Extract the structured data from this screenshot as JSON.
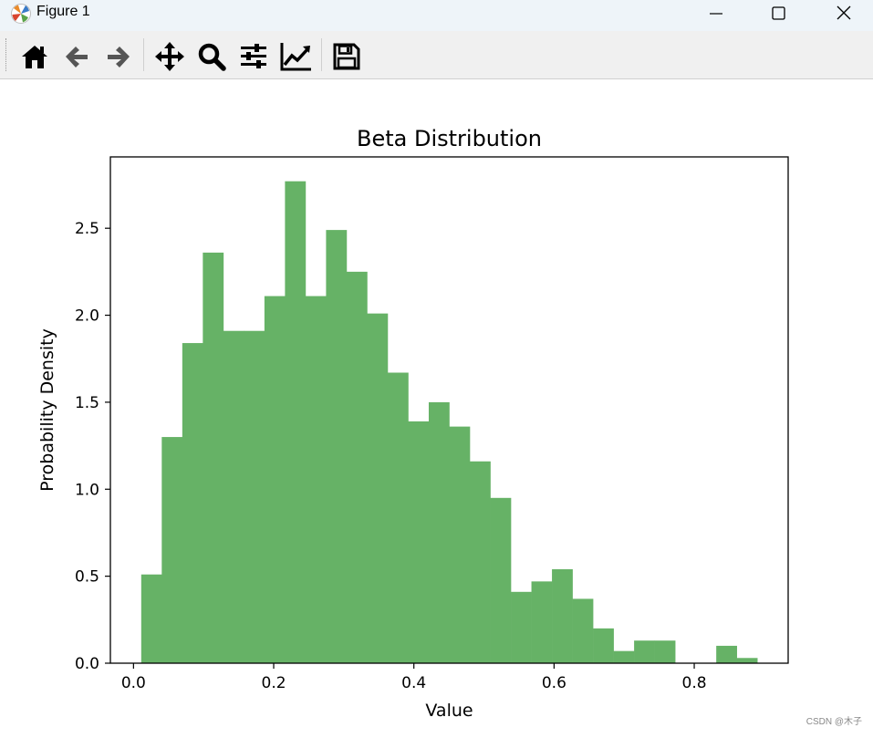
{
  "window": {
    "title": "Figure 1",
    "controls": {
      "minimize": "minimize",
      "maximize": "maximize",
      "close": "close"
    }
  },
  "toolbar": {
    "buttons": [
      {
        "name": "home-button",
        "icon": "home-icon"
      },
      {
        "name": "back-button",
        "icon": "arrow-left-icon"
      },
      {
        "name": "forward-button",
        "icon": "arrow-right-icon"
      },
      {
        "name": "pan-button",
        "icon": "move-icon"
      },
      {
        "name": "zoom-button",
        "icon": "magnifier-icon"
      },
      {
        "name": "configure-subplots-button",
        "icon": "sliders-icon"
      },
      {
        "name": "edit-axis-button",
        "icon": "line-chart-icon"
      },
      {
        "name": "save-button",
        "icon": "floppy-disk-icon"
      }
    ]
  },
  "chart_data": {
    "type": "bar",
    "title": "Beta Distribution",
    "xlabel": "Value",
    "ylabel": "Probability Density",
    "bin_edges": [
      0.011,
      0.0403,
      0.0696,
      0.0989,
      0.1282,
      0.1575,
      0.1868,
      0.2161,
      0.2454,
      0.2747,
      0.304,
      0.3333,
      0.3626,
      0.3919,
      0.4212,
      0.4505,
      0.4798,
      0.5091,
      0.5384,
      0.5677,
      0.597,
      0.6263,
      0.6556,
      0.6849,
      0.7142,
      0.7435,
      0.7728,
      0.8021,
      0.8314,
      0.8607,
      0.89
    ],
    "values": [
      0.51,
      1.3,
      1.84,
      2.36,
      1.91,
      1.91,
      2.11,
      2.77,
      2.11,
      2.49,
      2.25,
      2.01,
      1.67,
      1.39,
      1.5,
      1.36,
      1.16,
      0.95,
      0.41,
      0.47,
      0.54,
      0.37,
      0.2,
      0.07,
      0.13,
      0.13,
      0.0,
      0.0,
      0.1,
      0.03
    ],
    "bar_color": "#66b266",
    "xlim": [
      -0.033,
      0.934
    ],
    "ylim": [
      0,
      2.91
    ],
    "xticks": [
      0.0,
      0.2,
      0.4,
      0.6,
      0.8
    ],
    "xtick_labels": [
      "0.0",
      "0.2",
      "0.4",
      "0.6",
      "0.8"
    ],
    "yticks": [
      0.0,
      0.5,
      1.0,
      1.5,
      2.0,
      2.5
    ],
    "ytick_labels": [
      "0.0",
      "0.5",
      "1.0",
      "1.5",
      "2.0",
      "2.5"
    ],
    "grid": false
  },
  "watermark": "CSDN @木子"
}
